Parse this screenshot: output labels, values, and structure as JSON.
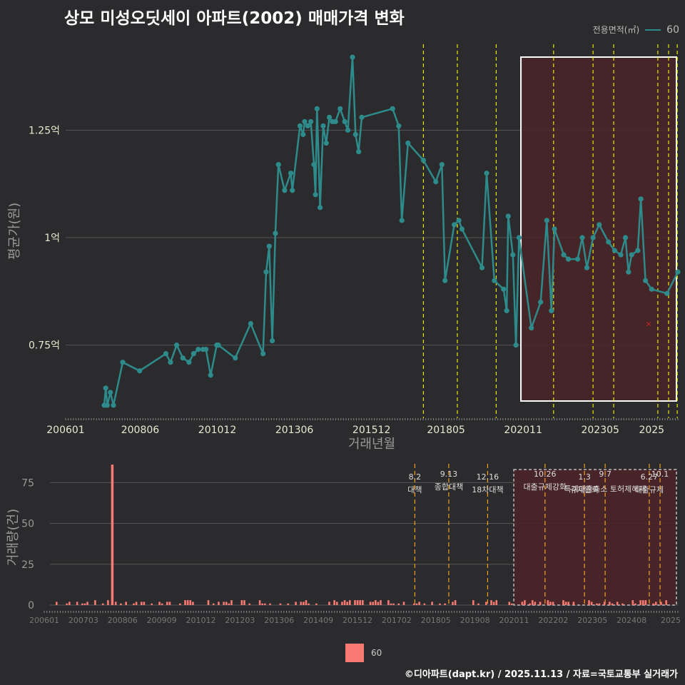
{
  "title": "상모 미성오딧세이 아파트(2002) 매매가격 변화",
  "credit": "©디아파트(dapt.kr) / 2025.11.13 / 자료=국토교통부 실거래가",
  "legend_top": {
    "title": "전용면적(㎡)",
    "series_label": "60"
  },
  "legend_bottom": {
    "series_label": "60"
  },
  "colors": {
    "background": "#2b2b2d",
    "line": "#2e8b8b",
    "bar": "#f87a72",
    "policy_line": "#e8e800",
    "policy_line_bottom": "#f0a020",
    "highlight_fill": "#4a2428",
    "grid": "#555555"
  },
  "chart_data": [
    {
      "type": "line",
      "title": "상모 미성오딧세이 아파트(2002) 매매가격 변화",
      "xlabel": "거래년월",
      "ylabel": "평균가(원)",
      "x_ticks": [
        "200601",
        "200806",
        "201012",
        "201306",
        "201512",
        "201805",
        "202011",
        "202305",
        "2025"
      ],
      "y_ticks": [
        "0.75억",
        "1억",
        "1.25억"
      ],
      "ylim_eok": [
        0.58,
        1.45
      ],
      "xlim_year": [
        2006.0,
        2025.85
      ],
      "series": [
        {
          "name": "60",
          "x": [
            2007.25,
            2007.3,
            2007.35,
            2007.45,
            2007.55,
            2007.85,
            2008.4,
            2009.25,
            2009.4,
            2009.6,
            2009.8,
            2010.0,
            2010.15,
            2010.3,
            2010.45,
            2010.55,
            2010.7,
            2010.9,
            2010.95,
            2011.5,
            2012.0,
            2012.4,
            2012.5,
            2012.6,
            2012.7,
            2012.8,
            2012.9,
            2013.1,
            2013.3,
            2013.35,
            2013.6,
            2013.7,
            2013.75,
            2013.85,
            2013.95,
            2014.05,
            2014.1,
            2014.15,
            2014.25,
            2014.35,
            2014.45,
            2014.55,
            2014.65,
            2014.75,
            2014.9,
            2015.05,
            2015.15,
            2015.3,
            2015.4,
            2015.5,
            2015.6,
            2016.6,
            2016.8,
            2016.9,
            2017.1,
            2017.6,
            2018.0,
            2018.2,
            2018.3,
            2018.6,
            2018.75,
            2018.85,
            2019.5,
            2019.65,
            2019.9,
            2020.2,
            2020.3,
            2020.35,
            2020.5,
            2020.6,
            2020.7,
            2021.1,
            2021.4,
            2021.6,
            2021.75,
            2021.85,
            2022.15,
            2022.3,
            2022.6,
            2022.75,
            2022.9,
            2023.1,
            2023.3,
            2023.6,
            2023.8,
            2024.0,
            2024.15,
            2024.25,
            2024.35,
            2024.55,
            2024.65,
            2024.8,
            2025.0,
            2025.5,
            2025.85
          ],
          "values": [
            0.61,
            0.65,
            0.61,
            0.64,
            0.61,
            0.71,
            0.69,
            0.73,
            0.71,
            0.75,
            0.72,
            0.71,
            0.73,
            0.74,
            0.74,
            0.74,
            0.68,
            0.75,
            0.75,
            0.72,
            0.8,
            0.73,
            0.92,
            0.98,
            0.76,
            1.01,
            1.17,
            1.11,
            1.15,
            1.11,
            1.26,
            1.24,
            1.27,
            1.26,
            1.27,
            1.17,
            1.1,
            1.3,
            1.07,
            1.26,
            1.22,
            1.28,
            1.27,
            1.27,
            1.3,
            1.27,
            1.25,
            1.42,
            1.24,
            1.2,
            1.28,
            1.3,
            1.26,
            1.04,
            1.22,
            1.18,
            1.13,
            1.17,
            0.9,
            1.03,
            1.04,
            1.02,
            0.93,
            1.15,
            0.9,
            0.88,
            0.83,
            1.05,
            0.96,
            0.75,
            1.0,
            0.79,
            0.85,
            1.04,
            0.83,
            1.02,
            0.96,
            0.95,
            0.95,
            1.0,
            0.93,
            1.0,
            1.03,
            0.99,
            0.97,
            0.96,
            1.0,
            0.92,
            0.96,
            0.97,
            1.09,
            0.9,
            0.88,
            0.87,
            0.92
          ]
        }
      ],
      "outlier": {
        "x": 2024.9,
        "value": 0.8
      },
      "policy_lines_x": [
        2017.6,
        2018.7,
        2019.96,
        2021.82,
        2023.1,
        2023.77,
        2025.2,
        2025.55,
        2025.83
      ],
      "highlight_range_x": [
        2020.9,
        2025.85
      ]
    },
    {
      "type": "bar",
      "xlabel": "",
      "ylabel": "거래량(건)",
      "x_ticks": [
        "200601",
        "200703",
        "200806",
        "200909",
        "201012",
        "201203",
        "201306",
        "201409",
        "201512",
        "201702",
        "201805",
        "201908",
        "202011",
        "202202",
        "202305",
        "202408",
        "2025"
      ],
      "y_ticks": [
        "0",
        "25",
        "50",
        "75"
      ],
      "ylim": [
        0,
        90
      ],
      "big_bar": {
        "x": 2007.75,
        "value": 86
      },
      "policy_events": [
        {
          "x": 2017.6,
          "date": "8.2",
          "label": "대책"
        },
        {
          "x": 2018.7,
          "date": "9.13",
          "label": "종합대책"
        },
        {
          "x": 2019.96,
          "date": "12.16",
          "label": "18차대책"
        },
        {
          "x": 2021.82,
          "date": "10.26",
          "label": "대출규제강화"
        },
        {
          "x": 2023.1,
          "date": "1.3",
          "label": "규제완화"
        },
        {
          "x": 2023.77,
          "date": "9.7",
          "label": "특례대출축소 토허제해제"
        },
        {
          "x": 2025.2,
          "date": "6.27",
          "label": "대출규제"
        },
        {
          "x": 2025.55,
          "date": "10.1",
          "label": ""
        }
      ]
    }
  ]
}
